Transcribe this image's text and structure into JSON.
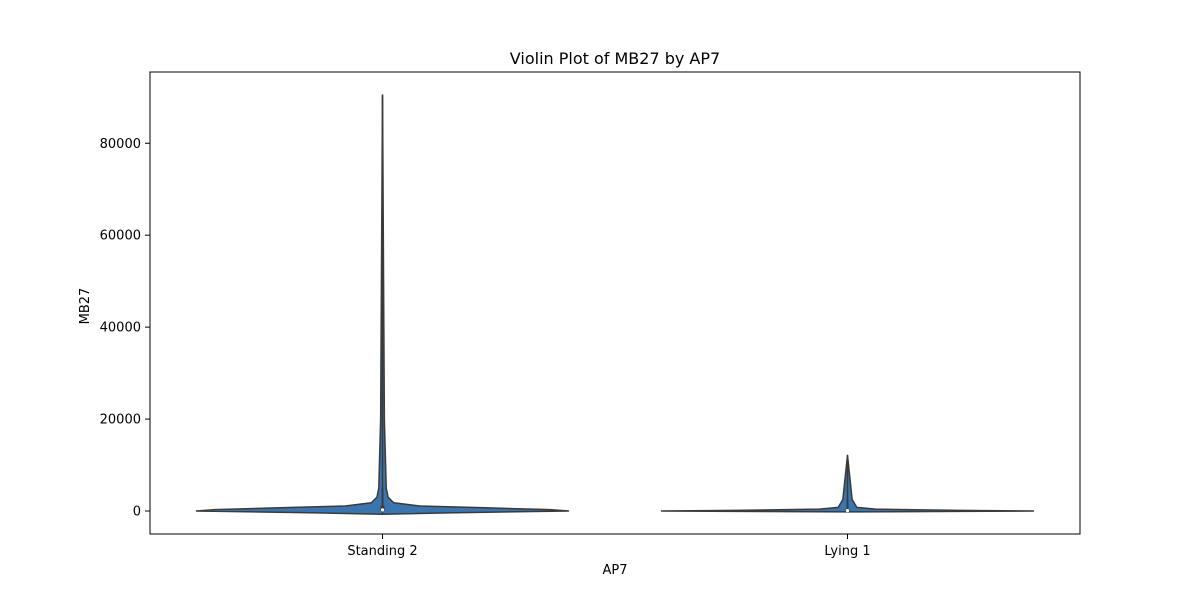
{
  "chart_data": {
    "type": "violin",
    "title": "Violin Plot of MB27 by AP7",
    "xlabel": "AP7",
    "ylabel": "MB27",
    "categories": [
      "Standing 2",
      "Lying 1"
    ],
    "ylim": [
      -5000,
      95500
    ],
    "yticks": [
      0,
      20000,
      40000,
      60000,
      80000
    ],
    "ytick_labels": [
      "0",
      "20000",
      "40000",
      "60000",
      "80000"
    ],
    "grid": false,
    "violin_color": "#3b75af",
    "edge_color": "#3a3a3a",
    "violins": [
      {
        "category": "Standing 2",
        "min": -700,
        "max": 90500,
        "q1": 50,
        "median": 250,
        "q3": 1100,
        "whisker_low": 0,
        "whisker_high": 5000,
        "density": [
          {
            "y": -700,
            "w": 0.0
          },
          {
            "y": -400,
            "w": 0.35
          },
          {
            "y": 0,
            "w": 1.0
          },
          {
            "y": 300,
            "w": 0.9
          },
          {
            "y": 700,
            "w": 0.55
          },
          {
            "y": 1100,
            "w": 0.2
          },
          {
            "y": 1800,
            "w": 0.06
          },
          {
            "y": 3000,
            "w": 0.03
          },
          {
            "y": 5000,
            "w": 0.02
          },
          {
            "y": 20000,
            "w": 0.01
          },
          {
            "y": 90500,
            "w": 0.0
          }
        ]
      },
      {
        "category": "Lying 1",
        "min": -200,
        "max": 12100,
        "q1": 20,
        "median": 80,
        "q3": 400,
        "whisker_low": 0,
        "whisker_high": 2500,
        "density": [
          {
            "y": -200,
            "w": 0.0
          },
          {
            "y": -80,
            "w": 0.6
          },
          {
            "y": 0,
            "w": 1.0
          },
          {
            "y": 150,
            "w": 0.6
          },
          {
            "y": 400,
            "w": 0.15
          },
          {
            "y": 800,
            "w": 0.05
          },
          {
            "y": 2500,
            "w": 0.025
          },
          {
            "y": 12100,
            "w": 0.0
          }
        ]
      }
    ]
  }
}
